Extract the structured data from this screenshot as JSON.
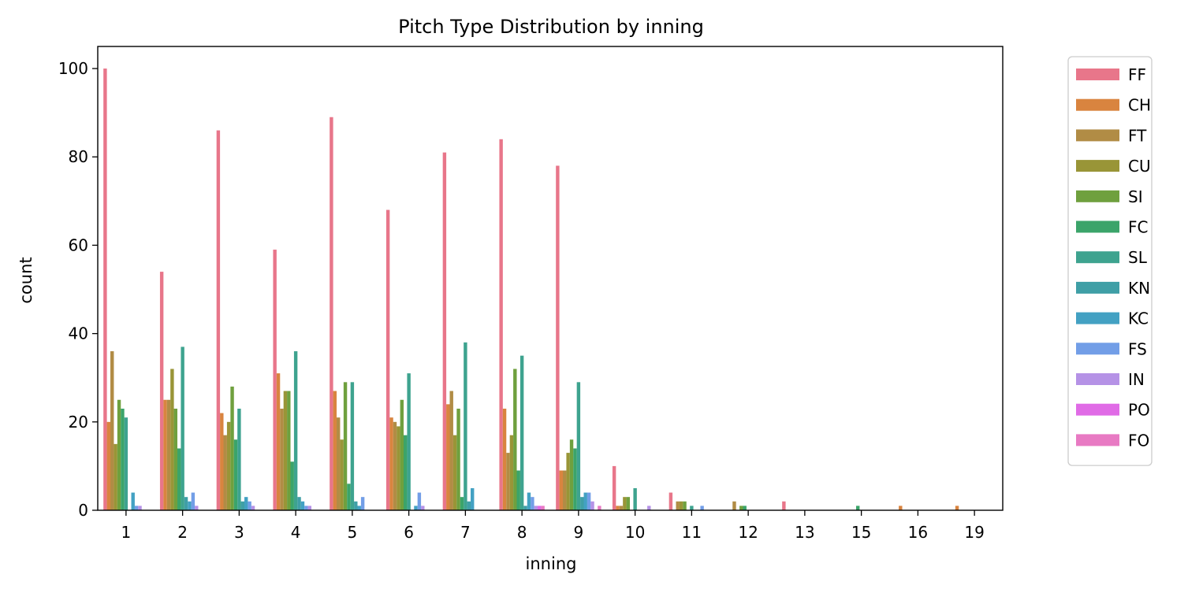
{
  "chart_data": {
    "type": "bar",
    "title": "Pitch Type Distribution by inning",
    "xlabel": "inning",
    "ylabel": "count",
    "ylim": [
      0,
      105
    ],
    "yticks": [
      0,
      20,
      40,
      60,
      80,
      100
    ],
    "grid": false,
    "legend_position": "outside-right",
    "categories": [
      "1",
      "2",
      "3",
      "4",
      "5",
      "6",
      "7",
      "8",
      "9",
      "10",
      "11",
      "12",
      "13",
      "15",
      "16",
      "19"
    ],
    "series": [
      {
        "name": "FF",
        "color": "#e8768a",
        "values": [
          100,
          54,
          86,
          59,
          89,
          68,
          81,
          84,
          78,
          10,
          4,
          0,
          2,
          0,
          0,
          0
        ]
      },
      {
        "name": "CH",
        "color": "#d9843f",
        "values": [
          20,
          25,
          22,
          31,
          27,
          21,
          24,
          23,
          9,
          1,
          0,
          0,
          0,
          0,
          1,
          1
        ]
      },
      {
        "name": "FT",
        "color": "#b18c45",
        "values": [
          36,
          25,
          17,
          23,
          21,
          20,
          27,
          13,
          9,
          1,
          2,
          2,
          0,
          0,
          0,
          0
        ]
      },
      {
        "name": "CU",
        "color": "#999537",
        "values": [
          15,
          32,
          20,
          27,
          16,
          19,
          17,
          17,
          13,
          3,
          2,
          0,
          0,
          0,
          0,
          0
        ]
      },
      {
        "name": "SI",
        "color": "#6fa03e",
        "values": [
          25,
          23,
          28,
          27,
          29,
          25,
          23,
          32,
          16,
          3,
          2,
          1,
          0,
          0,
          0,
          0
        ]
      },
      {
        "name": "FC",
        "color": "#3ba46a",
        "values": [
          23,
          14,
          16,
          11,
          6,
          17,
          3,
          9,
          14,
          0,
          0,
          1,
          0,
          1,
          0,
          0
        ]
      },
      {
        "name": "SL",
        "color": "#3ea38f",
        "values": [
          21,
          37,
          23,
          36,
          29,
          31,
          38,
          35,
          29,
          5,
          1,
          0,
          0,
          0,
          0,
          0
        ]
      },
      {
        "name": "KN",
        "color": "#3f9fa6",
        "values": [
          0,
          3,
          2,
          3,
          2,
          0,
          2,
          1,
          3,
          0,
          0,
          0,
          0,
          0,
          0,
          0
        ]
      },
      {
        "name": "KC",
        "color": "#43a1c3",
        "values": [
          4,
          2,
          3,
          2,
          1,
          1,
          5,
          4,
          4,
          0,
          0,
          0,
          0,
          0,
          0,
          0
        ]
      },
      {
        "name": "FS",
        "color": "#729ee7",
        "values": [
          1,
          4,
          2,
          1,
          3,
          4,
          0,
          3,
          4,
          0,
          1,
          0,
          0,
          0,
          0,
          0
        ]
      },
      {
        "name": "IN",
        "color": "#b592e6",
        "values": [
          1,
          1,
          1,
          1,
          0,
          1,
          0,
          1,
          2,
          1,
          0,
          0,
          0,
          0,
          0,
          0
        ]
      },
      {
        "name": "PO",
        "color": "#e06be6",
        "values": [
          0,
          0,
          0,
          0,
          0,
          0,
          0,
          1,
          0,
          0,
          0,
          0,
          0,
          0,
          0,
          0
        ]
      },
      {
        "name": "FO",
        "color": "#e87ac3",
        "values": [
          0,
          0,
          0,
          0,
          0,
          0,
          0,
          1,
          1,
          0,
          0,
          0,
          0,
          0,
          0,
          0
        ]
      }
    ]
  }
}
